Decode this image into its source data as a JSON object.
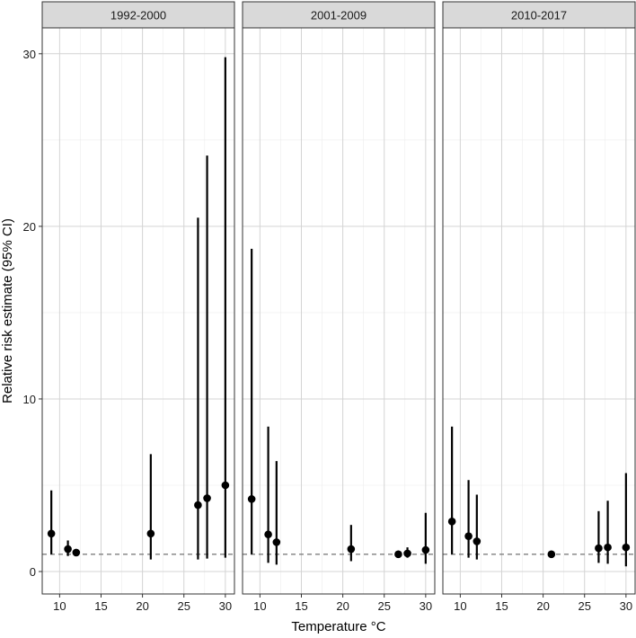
{
  "chart_data": {
    "type": "scatter",
    "xlabel": "Temperature °C",
    "ylabel": "Relative risk estimate (95% CI)",
    "xlim": [
      7.9,
      31.1
    ],
    "ylim": [
      -1.3,
      31.5
    ],
    "x_ticks": [
      10,
      15,
      20,
      25,
      30
    ],
    "y_ticks": [
      0,
      10,
      20,
      30
    ],
    "reference_line": 1,
    "grid": true,
    "panels": [
      {
        "label": "1992-2000",
        "points": [
          {
            "x": 9,
            "y": 2.2,
            "lo": 1.0,
            "hi": 4.7
          },
          {
            "x": 11,
            "y": 1.3,
            "lo": 0.9,
            "hi": 1.8
          },
          {
            "x": 12,
            "y": 1.1,
            "lo": 0.9,
            "hi": 1.3
          },
          {
            "x": 21,
            "y": 2.2,
            "lo": 0.7,
            "hi": 6.8
          },
          {
            "x": 26.7,
            "y": 3.85,
            "lo": 0.7,
            "hi": 20.5
          },
          {
            "x": 27.8,
            "y": 4.25,
            "lo": 0.75,
            "hi": 24.1
          },
          {
            "x": 30,
            "y": 5.0,
            "lo": 0.8,
            "hi": 29.8
          }
        ]
      },
      {
        "label": "2001-2009",
        "points": [
          {
            "x": 9,
            "y": 4.2,
            "lo": 1.0,
            "hi": 18.7
          },
          {
            "x": 11,
            "y": 2.15,
            "lo": 0.5,
            "hi": 8.4
          },
          {
            "x": 12,
            "y": 1.7,
            "lo": 0.4,
            "hi": 6.4
          },
          {
            "x": 21,
            "y": 1.3,
            "lo": 0.6,
            "hi": 2.7
          },
          {
            "x": 26.7,
            "y": 1.0,
            "lo": 0.85,
            "hi": 1.15
          },
          {
            "x": 27.8,
            "y": 1.05,
            "lo": 0.8,
            "hi": 1.4
          },
          {
            "x": 30,
            "y": 1.25,
            "lo": 0.45,
            "hi": 3.4
          }
        ]
      },
      {
        "label": "2010-2017",
        "points": [
          {
            "x": 9,
            "y": 2.9,
            "lo": 1.0,
            "hi": 8.4
          },
          {
            "x": 11,
            "y": 2.05,
            "lo": 0.8,
            "hi": 5.3
          },
          {
            "x": 12,
            "y": 1.75,
            "lo": 0.7,
            "hi": 4.45
          },
          {
            "x": 21,
            "y": 1.0,
            "lo": 0.95,
            "hi": 1.05
          },
          {
            "x": 26.7,
            "y": 1.35,
            "lo": 0.5,
            "hi": 3.5
          },
          {
            "x": 27.8,
            "y": 1.4,
            "lo": 0.45,
            "hi": 4.1
          },
          {
            "x": 30,
            "y": 1.4,
            "lo": 0.3,
            "hi": 5.7
          }
        ]
      }
    ],
    "colors": {
      "panel_bg": "#ffffff",
      "grid_major": "#d4d4d4",
      "grid_minor": "#ececec",
      "strip_bg": "#d9d9d9",
      "border": "#333333",
      "point": "#000000",
      "reference": "#7f7f7f"
    }
  }
}
